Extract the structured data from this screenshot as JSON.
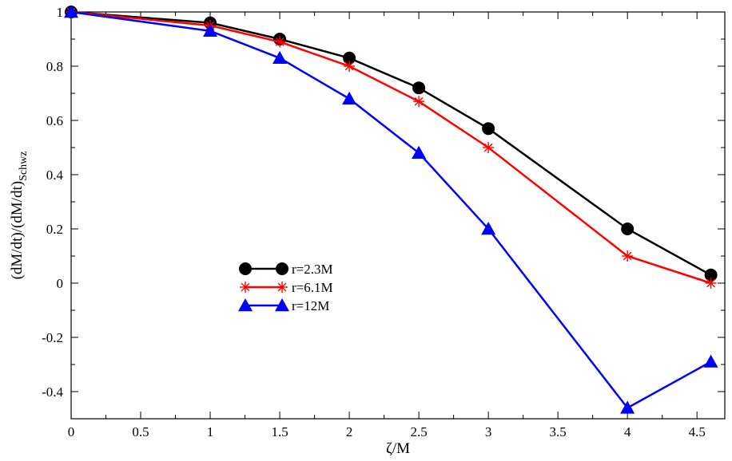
{
  "chart_data": {
    "type": "line",
    "title": "",
    "xlabel": "ζ/M",
    "ylabel": "(dM/dt)/(dM/dt)",
    "ylabel_subscript": "Schwz",
    "xlim": [
      0,
      4.7
    ],
    "ylim": [
      -0.5,
      1.0
    ],
    "x_ticks": [
      0,
      0.5,
      1,
      1.5,
      2,
      2.5,
      3,
      3.5,
      4,
      4.5
    ],
    "x_tick_labels": [
      "0",
      "0.5",
      "1",
      "1.5",
      "2",
      "2.5",
      "3",
      "3.5",
      "4",
      "4.5"
    ],
    "y_ticks": [
      -0.4,
      -0.2,
      0,
      0.2,
      0.4,
      0.6,
      0.8,
      1
    ],
    "y_tick_labels": [
      "-0.4",
      "-0.2",
      "0",
      "0.2",
      "0.4",
      "0.6",
      "0.8",
      "1"
    ],
    "grid": false,
    "legend_position": "center-left",
    "series": [
      {
        "name": "r=2.3M",
        "color": "#000000",
        "marker": "circle",
        "x": [
          0,
          1,
          1.5,
          2,
          2.5,
          3,
          4,
          4.6
        ],
        "y": [
          1.0,
          0.96,
          0.9,
          0.83,
          0.72,
          0.57,
          0.2,
          0.03
        ]
      },
      {
        "name": "r=6.1M",
        "color": "#ff0000",
        "marker": "asterisk",
        "x": [
          0,
          1,
          1.5,
          2,
          2.5,
          3,
          4,
          4.6
        ],
        "y": [
          1.0,
          0.95,
          0.89,
          0.8,
          0.67,
          0.5,
          0.1,
          0.0
        ]
      },
      {
        "name": "r=12M",
        "color": "#0000ff",
        "marker": "triangle",
        "x": [
          0,
          1,
          1.5,
          2,
          2.5,
          3,
          4,
          4.6
        ],
        "y": [
          1.0,
          0.93,
          0.83,
          0.68,
          0.48,
          0.2,
          -0.46,
          -0.29
        ]
      }
    ]
  }
}
